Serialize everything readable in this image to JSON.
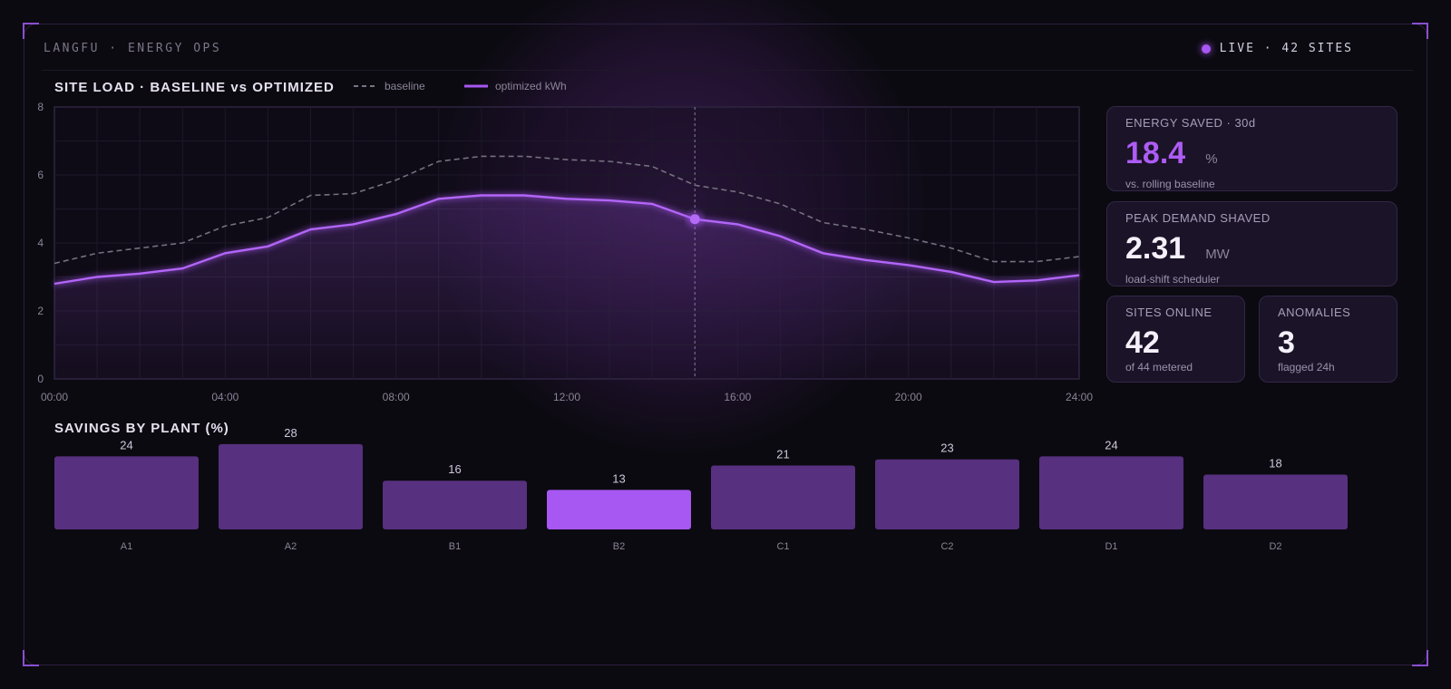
{
  "header": {
    "brand": "LANGFU · ENERGY OPS",
    "live_status": "LIVE · 42 SITES"
  },
  "colors": {
    "accent": "#a757f2",
    "bar": "#57307f",
    "bar_highlight": "#a757f2",
    "baseline": "#6e6878"
  },
  "line_chart": {
    "title": "SITE LOAD · BASELINE vs OPTIMIZED",
    "legend_baseline": "baseline",
    "legend_optimized": "optimized kWh"
  },
  "bar_chart": {
    "title": "SAVINGS BY PLANT (%)"
  },
  "chart_data": [
    {
      "type": "line",
      "title": "SITE LOAD · BASELINE vs OPTIMIZED",
      "x": [
        0,
        1,
        2,
        3,
        4,
        5,
        6,
        7,
        8,
        9,
        10,
        11,
        12,
        13,
        14,
        15,
        16,
        17,
        18,
        19,
        20,
        21,
        22,
        23,
        24
      ],
      "x_ticks": [
        "00:00",
        "04:00",
        "08:00",
        "12:00",
        "16:00",
        "20:00",
        "24:00"
      ],
      "x_tick_values": [
        0,
        4,
        8,
        12,
        16,
        20,
        24
      ],
      "ylim": [
        0,
        8
      ],
      "y_ticks": [
        0,
        2,
        4,
        6,
        8
      ],
      "grid": true,
      "series": [
        {
          "name": "baseline",
          "style": "dashed",
          "values": [
            3.4,
            3.7,
            3.85,
            4.0,
            4.5,
            4.75,
            5.4,
            5.45,
            5.85,
            6.4,
            6.55,
            6.55,
            6.45,
            6.4,
            6.25,
            5.7,
            5.5,
            5.15,
            4.6,
            4.4,
            4.15,
            3.85,
            3.45,
            3.45,
            3.6
          ]
        },
        {
          "name": "optimized kWh",
          "style": "solid",
          "values": [
            2.8,
            3.0,
            3.1,
            3.25,
            3.7,
            3.9,
            4.4,
            4.55,
            4.85,
            5.3,
            5.4,
            5.4,
            5.3,
            5.25,
            5.15,
            4.7,
            4.55,
            4.2,
            3.7,
            3.5,
            3.35,
            3.15,
            2.85,
            2.9,
            3.05
          ]
        }
      ],
      "marker_x": 15
    },
    {
      "type": "bar",
      "title": "SAVINGS BY PLANT (%)",
      "categories": [
        "A1",
        "A2",
        "B1",
        "B2",
        "C1",
        "C2",
        "D1",
        "D2"
      ],
      "values": [
        24,
        28,
        16,
        13,
        21,
        23,
        24,
        18
      ],
      "highlight": "B2"
    }
  ],
  "cards": {
    "energy_saved": {
      "label": "ENERGY SAVED · 30d",
      "value": "18.4",
      "unit": "%",
      "sub": "vs. rolling baseline"
    },
    "peak_demand": {
      "label": "PEAK DEMAND SHAVED",
      "value": "2.31",
      "unit": "MW",
      "sub": "load-shift scheduler"
    },
    "sites_online": {
      "label": "SITES ONLINE",
      "value": "42",
      "sub": "of 44 metered"
    },
    "anomalies": {
      "label": "ANOMALIES",
      "value": "3",
      "sub": "flagged 24h"
    }
  }
}
